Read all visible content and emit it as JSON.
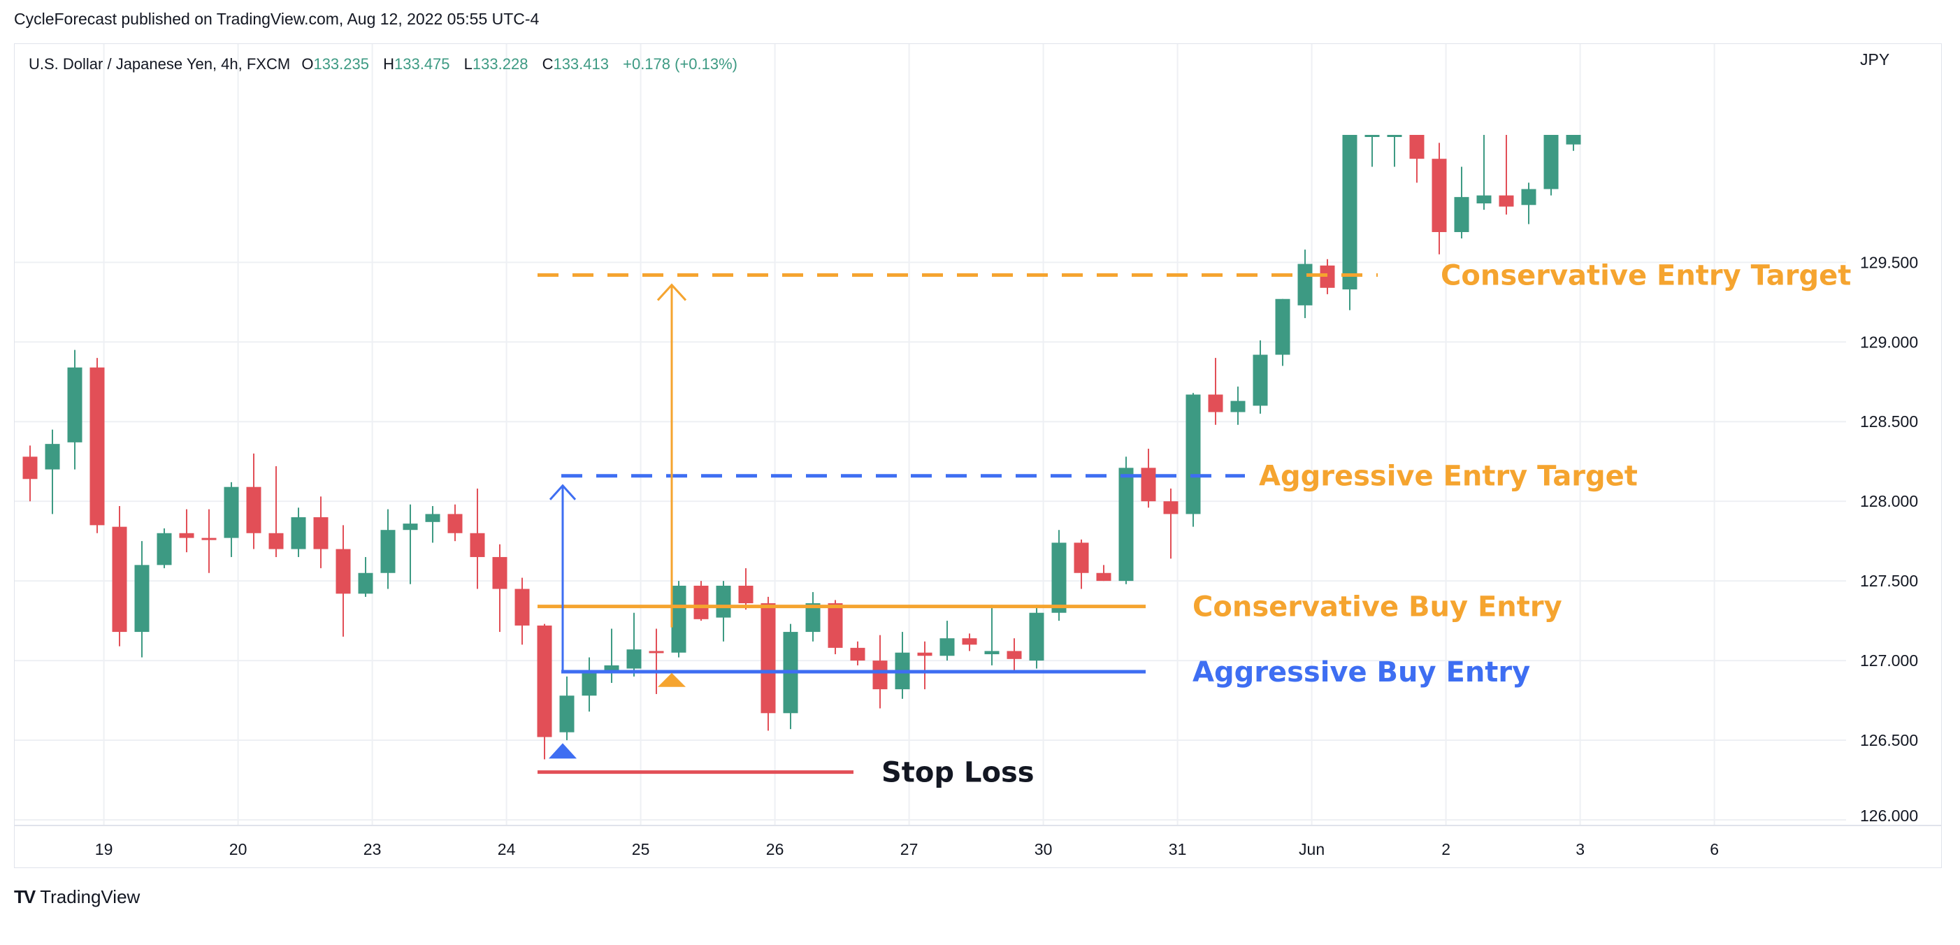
{
  "header": {
    "published": "CycleForecast published on TradingView.com, Aug 12, 2022 05:55 UTC-4"
  },
  "legend": {
    "symbol": "U.S. Dollar / Japanese Yen, 4h, FXCM",
    "o_label": "O",
    "o_value": "133.235",
    "h_label": "H",
    "h_value": "133.475",
    "l_label": "L",
    "l_value": "133.228",
    "c_label": "C",
    "c_value": "133.413",
    "change": "+0.178 (+0.13%)"
  },
  "colors": {
    "up": "#3d9a83",
    "down": "#e24f57",
    "orange": "#f5a42f",
    "blue": "#3e6ef2",
    "grid": "#eef0f4",
    "axis_text": "#131722"
  },
  "footer": {
    "brand": "TradingView",
    "logo_icon": "tradingview-logo-icon"
  },
  "chart_data": {
    "type": "candlestick",
    "currency": "JPY",
    "ylim": [
      126.0,
      130.3
    ],
    "y_ticks": [
      "129.500",
      "129.000",
      "128.500",
      "128.000",
      "127.500",
      "127.000",
      "126.500",
      "126.000"
    ],
    "x_labels": [
      "19",
      "20",
      "23",
      "24",
      "25",
      "26",
      "27",
      "30",
      "31",
      "Jun",
      "2",
      "3",
      "6"
    ],
    "candles": [
      {
        "o": 128.28,
        "h": 128.35,
        "l": 128.0,
        "c": 128.14
      },
      {
        "o": 128.2,
        "h": 128.45,
        "l": 127.92,
        "c": 128.36
      },
      {
        "o": 128.37,
        "h": 128.95,
        "l": 128.2,
        "c": 128.84
      },
      {
        "o": 128.84,
        "h": 128.9,
        "l": 127.8,
        "c": 127.85
      },
      {
        "o": 127.84,
        "h": 127.97,
        "l": 127.09,
        "c": 127.18
      },
      {
        "o": 127.18,
        "h": 127.75,
        "l": 127.02,
        "c": 127.6
      },
      {
        "o": 127.6,
        "h": 127.83,
        "l": 127.58,
        "c": 127.8
      },
      {
        "o": 127.8,
        "h": 127.95,
        "l": 127.68,
        "c": 127.77
      },
      {
        "o": 127.77,
        "h": 127.95,
        "l": 127.55,
        "c": 127.76
      },
      {
        "o": 127.77,
        "h": 128.12,
        "l": 127.65,
        "c": 128.09
      },
      {
        "o": 128.09,
        "h": 128.3,
        "l": 127.7,
        "c": 127.8
      },
      {
        "o": 127.8,
        "h": 128.22,
        "l": 127.65,
        "c": 127.7
      },
      {
        "o": 127.7,
        "h": 127.96,
        "l": 127.65,
        "c": 127.9
      },
      {
        "o": 127.9,
        "h": 128.03,
        "l": 127.58,
        "c": 127.7
      },
      {
        "o": 127.7,
        "h": 127.85,
        "l": 127.15,
        "c": 127.42
      },
      {
        "o": 127.42,
        "h": 127.65,
        "l": 127.4,
        "c": 127.55
      },
      {
        "o": 127.55,
        "h": 127.95,
        "l": 127.45,
        "c": 127.82
      },
      {
        "o": 127.82,
        "h": 127.98,
        "l": 127.48,
        "c": 127.86
      },
      {
        "o": 127.87,
        "h": 127.97,
        "l": 127.74,
        "c": 127.92
      },
      {
        "o": 127.92,
        "h": 127.98,
        "l": 127.75,
        "c": 127.8
      },
      {
        "o": 127.8,
        "h": 128.08,
        "l": 127.45,
        "c": 127.65
      },
      {
        "o": 127.65,
        "h": 127.73,
        "l": 127.18,
        "c": 127.45
      },
      {
        "o": 127.45,
        "h": 127.52,
        "l": 127.1,
        "c": 127.22
      },
      {
        "o": 127.22,
        "h": 127.23,
        "l": 126.38,
        "c": 126.52
      },
      {
        "o": 126.55,
        "h": 126.9,
        "l": 126.5,
        "c": 126.78
      },
      {
        "o": 126.78,
        "h": 127.02,
        "l": 126.68,
        "c": 126.94
      },
      {
        "o": 126.92,
        "h": 127.2,
        "l": 126.86,
        "c": 126.97
      },
      {
        "o": 126.95,
        "h": 127.3,
        "l": 126.9,
        "c": 127.07
      },
      {
        "o": 127.06,
        "h": 127.2,
        "l": 126.79,
        "c": 127.05
      },
      {
        "o": 127.05,
        "h": 127.5,
        "l": 127.02,
        "c": 127.47
      },
      {
        "o": 127.47,
        "h": 127.5,
        "l": 127.25,
        "c": 127.26
      },
      {
        "o": 127.27,
        "h": 127.5,
        "l": 127.12,
        "c": 127.47
      },
      {
        "o": 127.47,
        "h": 127.58,
        "l": 127.32,
        "c": 127.36
      },
      {
        "o": 127.36,
        "h": 127.4,
        "l": 126.56,
        "c": 126.67
      },
      {
        "o": 126.67,
        "h": 127.23,
        "l": 126.57,
        "c": 127.18
      },
      {
        "o": 127.18,
        "h": 127.43,
        "l": 127.12,
        "c": 127.36
      },
      {
        "o": 127.36,
        "h": 127.38,
        "l": 127.04,
        "c": 127.08
      },
      {
        "o": 127.08,
        "h": 127.12,
        "l": 126.97,
        "c": 127.0
      },
      {
        "o": 127.0,
        "h": 127.16,
        "l": 126.7,
        "c": 126.82
      },
      {
        "o": 126.82,
        "h": 127.18,
        "l": 126.76,
        "c": 127.05
      },
      {
        "o": 127.05,
        "h": 127.12,
        "l": 126.82,
        "c": 127.03
      },
      {
        "o": 127.03,
        "h": 127.25,
        "l": 127.0,
        "c": 127.14
      },
      {
        "o": 127.14,
        "h": 127.17,
        "l": 127.06,
        "c": 127.1
      },
      {
        "o": 127.04,
        "h": 127.35,
        "l": 126.97,
        "c": 127.06
      },
      {
        "o": 127.06,
        "h": 127.14,
        "l": 126.92,
        "c": 127.01
      },
      {
        "o": 127.0,
        "h": 127.35,
        "l": 126.95,
        "c": 127.3
      },
      {
        "o": 127.3,
        "h": 127.82,
        "l": 127.25,
        "c": 127.74
      },
      {
        "o": 127.74,
        "h": 127.76,
        "l": 127.45,
        "c": 127.55
      },
      {
        "o": 127.55,
        "h": 127.6,
        "l": 127.5,
        "c": 127.5
      },
      {
        "o": 127.5,
        "h": 128.28,
        "l": 127.48,
        "c": 128.21
      },
      {
        "o": 128.21,
        "h": 128.33,
        "l": 127.96,
        "c": 128.0
      },
      {
        "o": 128.0,
        "h": 128.08,
        "l": 127.64,
        "c": 127.92
      },
      {
        "o": 127.92,
        "h": 128.68,
        "l": 127.84,
        "c": 128.67
      },
      {
        "o": 128.67,
        "h": 128.9,
        "l": 128.48,
        "c": 128.56
      },
      {
        "o": 128.56,
        "h": 128.72,
        "l": 128.48,
        "c": 128.63
      },
      {
        "o": 128.6,
        "h": 129.01,
        "l": 128.55,
        "c": 128.92
      },
      {
        "o": 128.92,
        "h": 129.27,
        "l": 128.85,
        "c": 129.27
      },
      {
        "o": 129.23,
        "h": 129.58,
        "l": 129.15,
        "c": 129.49
      },
      {
        "o": 129.48,
        "h": 129.52,
        "l": 129.3,
        "c": 129.34
      },
      {
        "o": 129.33,
        "h": 130.3,
        "l": 129.2,
        "c": 130.3
      },
      {
        "o": 130.3,
        "h": 130.3,
        "l": 130.1,
        "c": 130.3
      },
      {
        "o": 130.3,
        "h": 130.3,
        "l": 130.1,
        "c": 130.3
      },
      {
        "o": 130.3,
        "h": 130.3,
        "l": 130.0,
        "c": 130.15
      },
      {
        "o": 130.15,
        "h": 130.25,
        "l": 129.55,
        "c": 129.69
      },
      {
        "o": 129.69,
        "h": 130.1,
        "l": 129.65,
        "c": 129.91
      },
      {
        "o": 129.87,
        "h": 130.3,
        "l": 129.83,
        "c": 129.92
      },
      {
        "o": 129.92,
        "h": 130.3,
        "l": 129.8,
        "c": 129.85
      },
      {
        "o": 129.86,
        "h": 130.0,
        "l": 129.74,
        "c": 129.96
      },
      {
        "o": 129.96,
        "h": 130.3,
        "l": 129.92,
        "c": 130.3
      },
      {
        "o": 130.24,
        "h": 130.3,
        "l": 130.2,
        "c": 130.3
      }
    ],
    "annotations": {
      "conservative_target": {
        "label": "Conservative Entry Target",
        "price": 129.42
      },
      "aggressive_target": {
        "label": "Aggressive Entry Target",
        "price": 128.16
      },
      "conservative_entry": {
        "label": "Conservative Buy Entry",
        "price": 127.34
      },
      "aggressive_entry": {
        "label": "Aggressive Buy Entry",
        "price": 126.93
      },
      "stop_loss": {
        "label": "Stop Loss",
        "price": 126.3
      }
    }
  }
}
